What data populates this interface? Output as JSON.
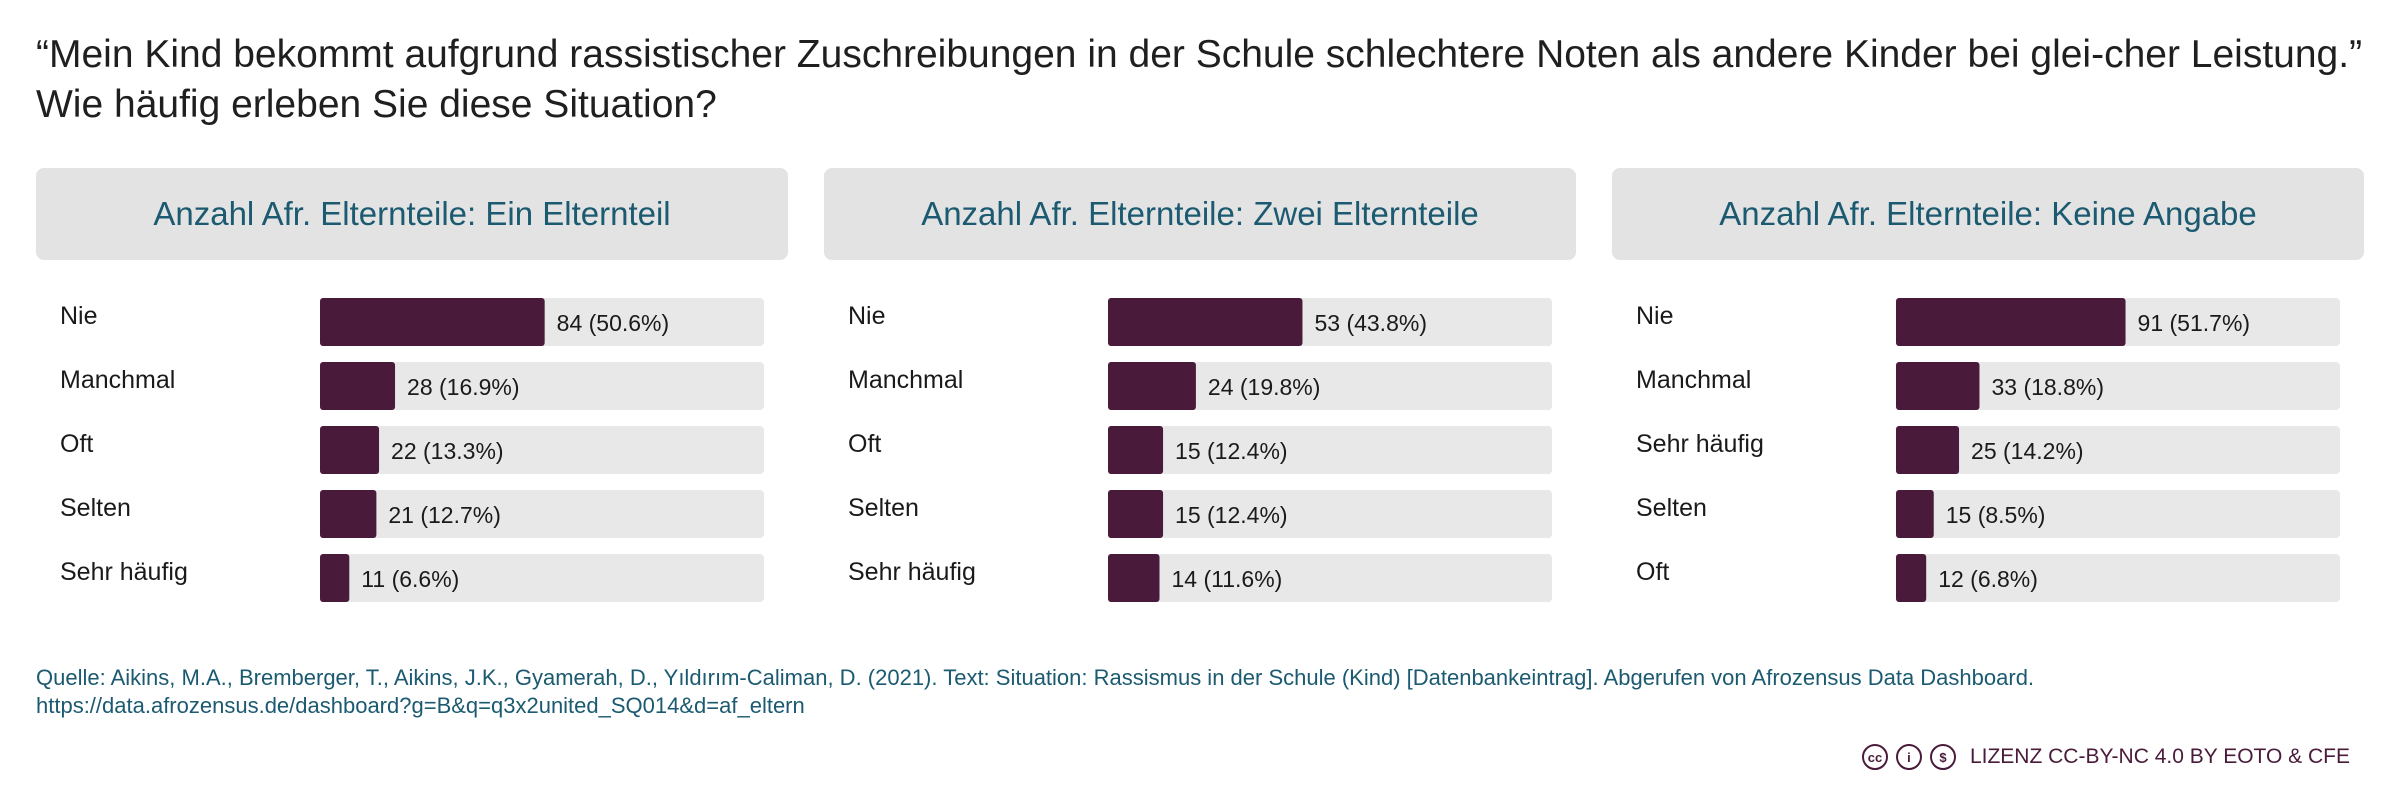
{
  "title": "“Mein Kind bekommt aufgrund rassistischer Zuschreibungen in der Schule schlechtere Noten als andere Kinder bei glei-cher Leistung.” Wie häufig erleben Sie diese Situation?",
  "source": "Quelle: Aikins, M.A., Bremberger, T., Aikins, J.K., Gyamerah, D., Yıldırım-Caliman, D. (2021). Text: Situation: Rassismus in der Schule (Kind) [Datenbankeintrag]. Abgerufen von Afrozensus Data Dashboard. https://data.afrozensus.de/dashboard?g=B&q=q3x2united_SQ014&d=af_eltern",
  "license": {
    "text": "LIZENZ CC-BY-NC 4.0 BY EOTO & CFE",
    "icons": [
      "cc-icon",
      "by-icon",
      "nc-icon"
    ]
  },
  "colors": {
    "bar": "#4a1a3b",
    "track": "#e8e8e8",
    "header_bg": "#e3e3e3",
    "header_text": "#1b5a70"
  },
  "chart_data": [
    {
      "type": "bar",
      "orientation": "horizontal",
      "title": "Anzahl Afr. Elternteile: Ein Elternteil",
      "categories": [
        "Nie",
        "Manchmal",
        "Oft",
        "Selten",
        "Sehr häufig"
      ],
      "values": [
        84,
        28,
        22,
        21,
        11
      ],
      "percent": [
        50.6,
        16.9,
        13.3,
        12.7,
        6.6
      ],
      "labels": [
        "84 (50.6%)",
        "28 (16.9%)",
        "22 (13.3%)",
        "21 (12.7%)",
        "11 (6.6%)"
      ]
    },
    {
      "type": "bar",
      "orientation": "horizontal",
      "title": "Anzahl Afr. Elternteile: Zwei Elternteile",
      "categories": [
        "Nie",
        "Manchmal",
        "Oft",
        "Selten",
        "Sehr häufig"
      ],
      "values": [
        53,
        24,
        15,
        15,
        14
      ],
      "percent": [
        43.8,
        19.8,
        12.4,
        12.4,
        11.6
      ],
      "labels": [
        "53 (43.8%)",
        "24 (19.8%)",
        "15 (12.4%)",
        "15 (12.4%)",
        "14 (11.6%)"
      ]
    },
    {
      "type": "bar",
      "orientation": "horizontal",
      "title": "Anzahl Afr. Elternteile: Keine Angabe",
      "categories": [
        "Nie",
        "Manchmal",
        "Sehr häufig",
        "Selten",
        "Oft"
      ],
      "values": [
        91,
        33,
        25,
        15,
        12
      ],
      "percent": [
        51.7,
        18.8,
        14.2,
        8.5,
        6.8
      ],
      "labels": [
        "91 (51.7%)",
        "33 (18.8%)",
        "25 (14.2%)",
        "15 (8.5%)",
        "12 (6.8%)"
      ]
    }
  ]
}
